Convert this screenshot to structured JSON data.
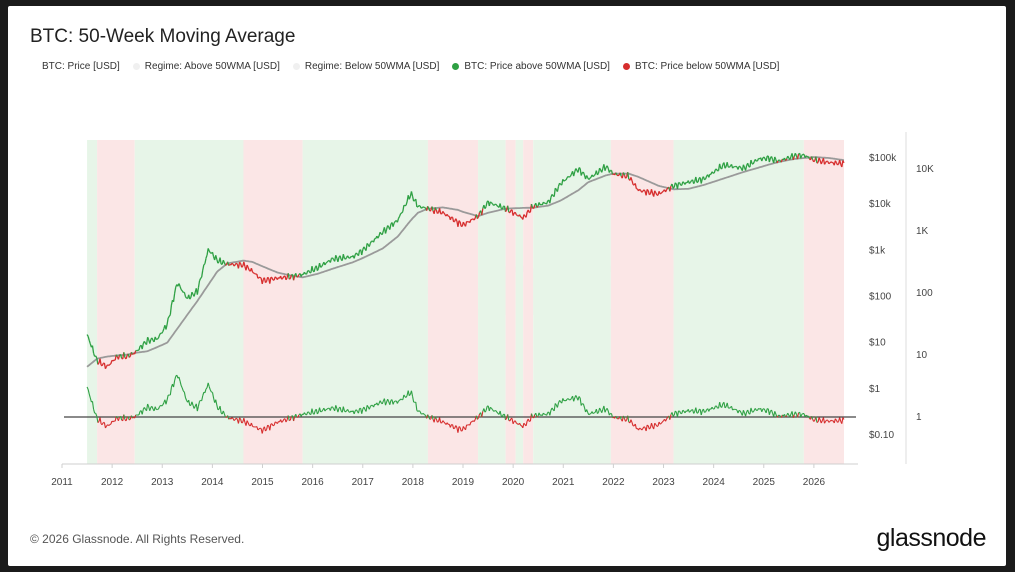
{
  "chart_data": {
    "type": "line",
    "title": "BTC: 50-Week Moving Average",
    "legend": [
      {
        "label": "BTC: Price [USD]",
        "color": "#ffffff"
      },
      {
        "label": "Regime: Above 50WMA [USD]",
        "color": "#f0f0f0"
      },
      {
        "label": "Regime: Below 50WMA [USD]",
        "color": "#f0f0f0"
      },
      {
        "label": "BTC: Price above 50WMA [USD]",
        "color": "#2ea043"
      },
      {
        "label": "BTC: Price below 50WMA [USD]",
        "color": "#d62d2d"
      }
    ],
    "legend_position": "top-left",
    "x_ticks": [
      "2011",
      "2012",
      "2013",
      "2014",
      "2015",
      "2016",
      "2017",
      "2018",
      "2019",
      "2020",
      "2021",
      "2022",
      "2023",
      "2024",
      "2025",
      "2026"
    ],
    "y_left_ticks": [
      "$0.10",
      "$1",
      "$10",
      "$100",
      "$1k",
      "$10k",
      "$100k"
    ],
    "y_right_ticks": [
      "1",
      "10",
      "100",
      "1K",
      "10K"
    ],
    "reference_line": 1,
    "regimes": [
      {
        "start": 2011.5,
        "end": 2011.7,
        "state": "above"
      },
      {
        "start": 2011.7,
        "end": 2012.45,
        "state": "below"
      },
      {
        "start": 2012.45,
        "end": 2014.62,
        "state": "above"
      },
      {
        "start": 2014.62,
        "end": 2015.8,
        "state": "below"
      },
      {
        "start": 2015.8,
        "end": 2018.3,
        "state": "above"
      },
      {
        "start": 2018.3,
        "end": 2019.3,
        "state": "below"
      },
      {
        "start": 2019.3,
        "end": 2019.85,
        "state": "above"
      },
      {
        "start": 2019.85,
        "end": 2020.05,
        "state": "below"
      },
      {
        "start": 2020.05,
        "end": 2020.2,
        "state": "above"
      },
      {
        "start": 2020.2,
        "end": 2020.4,
        "state": "below"
      },
      {
        "start": 2020.4,
        "end": 2021.95,
        "state": "above"
      },
      {
        "start": 2021.95,
        "end": 2023.2,
        "state": "below"
      },
      {
        "start": 2023.2,
        "end": 2025.8,
        "state": "above"
      },
      {
        "start": 2025.8,
        "end": 2026.6,
        "state": "below"
      }
    ],
    "price": [
      [
        2011.5,
        15
      ],
      [
        2011.7,
        4
      ],
      [
        2011.9,
        3
      ],
      [
        2012.1,
        5
      ],
      [
        2012.3,
        5
      ],
      [
        2012.45,
        6
      ],
      [
        2012.7,
        11
      ],
      [
        2012.9,
        12
      ],
      [
        2013.1,
        25
      ],
      [
        2013.3,
        200
      ],
      [
        2013.5,
        90
      ],
      [
        2013.7,
        130
      ],
      [
        2013.92,
        1050
      ],
      [
        2014.1,
        600
      ],
      [
        2014.3,
        500
      ],
      [
        2014.62,
        480
      ],
      [
        2014.8,
        350
      ],
      [
        2015.0,
        220
      ],
      [
        2015.3,
        250
      ],
      [
        2015.6,
        270
      ],
      [
        2015.8,
        300
      ],
      [
        2016.1,
        420
      ],
      [
        2016.4,
        650
      ],
      [
        2016.8,
        720
      ],
      [
        2017.0,
        1000
      ],
      [
        2017.4,
        2500
      ],
      [
        2017.7,
        4500
      ],
      [
        2017.96,
        17000
      ],
      [
        2018.1,
        9000
      ],
      [
        2018.3,
        8000
      ],
      [
        2018.6,
        6500
      ],
      [
        2018.9,
        4000
      ],
      [
        2019.0,
        3500
      ],
      [
        2019.3,
        5500
      ],
      [
        2019.5,
        11000
      ],
      [
        2019.85,
        8000
      ],
      [
        2020.2,
        5000
      ],
      [
        2020.4,
        9000
      ],
      [
        2020.7,
        11000
      ],
      [
        2020.95,
        28000
      ],
      [
        2021.3,
        58000
      ],
      [
        2021.5,
        35000
      ],
      [
        2021.85,
        65000
      ],
      [
        2022.0,
        45000
      ],
      [
        2022.3,
        40000
      ],
      [
        2022.5,
        20000
      ],
      [
        2022.9,
        16500
      ],
      [
        2023.2,
        25000
      ],
      [
        2023.5,
        30000
      ],
      [
        2023.8,
        35000
      ],
      [
        2024.2,
        70000
      ],
      [
        2024.6,
        60000
      ],
      [
        2024.9,
        95000
      ],
      [
        2025.1,
        100000
      ],
      [
        2025.3,
        85000
      ],
      [
        2025.6,
        110000
      ],
      [
        2025.8,
        115000
      ],
      [
        2026.0,
        90000
      ],
      [
        2026.3,
        80000
      ],
      [
        2026.6,
        75000
      ]
    ],
    "ma50w": [
      [
        2011.5,
        3
      ],
      [
        2011.7,
        4.5
      ],
      [
        2011.9,
        5
      ],
      [
        2012.1,
        5.3
      ],
      [
        2012.3,
        5.5
      ],
      [
        2012.45,
        6
      ],
      [
        2012.7,
        6.5
      ],
      [
        2012.9,
        8
      ],
      [
        2013.1,
        10
      ],
      [
        2013.3,
        20
      ],
      [
        2013.5,
        40
      ],
      [
        2013.7,
        80
      ],
      [
        2013.92,
        180
      ],
      [
        2014.1,
        350
      ],
      [
        2014.3,
        520
      ],
      [
        2014.62,
        600
      ],
      [
        2014.8,
        560
      ],
      [
        2015.0,
        450
      ],
      [
        2015.3,
        330
      ],
      [
        2015.6,
        280
      ],
      [
        2015.8,
        260
      ],
      [
        2016.1,
        310
      ],
      [
        2016.4,
        400
      ],
      [
        2016.8,
        550
      ],
      [
        2017.0,
        680
      ],
      [
        2017.4,
        1100
      ],
      [
        2017.7,
        2000
      ],
      [
        2017.96,
        4500
      ],
      [
        2018.1,
        6500
      ],
      [
        2018.3,
        8000
      ],
      [
        2018.6,
        8500
      ],
      [
        2018.9,
        7500
      ],
      [
        2019.0,
        6800
      ],
      [
        2019.3,
        5500
      ],
      [
        2019.5,
        6500
      ],
      [
        2019.85,
        8000
      ],
      [
        2020.2,
        8300
      ],
      [
        2020.4,
        8400
      ],
      [
        2020.7,
        9300
      ],
      [
        2020.95,
        12000
      ],
      [
        2021.3,
        20000
      ],
      [
        2021.5,
        30000
      ],
      [
        2021.85,
        42000
      ],
      [
        2022.0,
        46000
      ],
      [
        2022.3,
        46000
      ],
      [
        2022.5,
        39000
      ],
      [
        2022.9,
        25000
      ],
      [
        2023.2,
        21000
      ],
      [
        2023.5,
        21500
      ],
      [
        2023.8,
        26000
      ],
      [
        2024.2,
        36000
      ],
      [
        2024.6,
        50000
      ],
      [
        2024.9,
        62000
      ],
      [
        2025.1,
        72000
      ],
      [
        2025.3,
        82000
      ],
      [
        2025.6,
        95000
      ],
      [
        2025.8,
        100000
      ],
      [
        2026.0,
        105000
      ],
      [
        2026.3,
        100000
      ],
      [
        2026.6,
        90000
      ]
    ]
  },
  "footer": {
    "copyright": "© 2026 Glassnode. All Rights Reserved.",
    "brand": "glassnode"
  },
  "watermark": "glassnode"
}
